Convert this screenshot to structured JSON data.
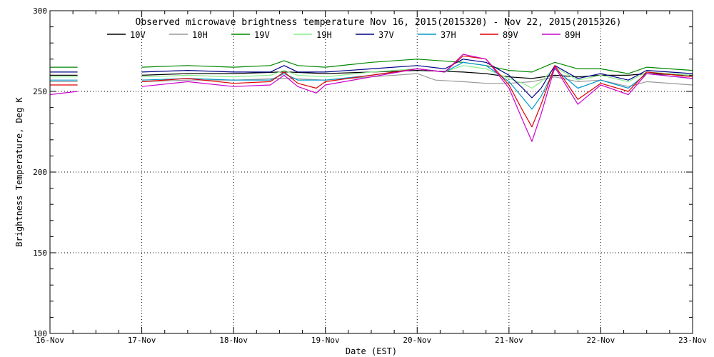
{
  "chart_data": {
    "type": "line",
    "title": "Observed microwave brightness temperature Nov 16, 2015(2015320) - Nov 22, 2015(2015326)",
    "xlabel": "Date (EST)",
    "ylabel": "Brightness Temperature, Deg K",
    "ylim": [
      100,
      300
    ],
    "xlim": [
      0,
      7
    ],
    "yticks": [
      100,
      150,
      200,
      250,
      300
    ],
    "xtick_labels": [
      "16-Nov",
      "17-Nov",
      "18-Nov",
      "19-Nov",
      "20-Nov",
      "21-Nov",
      "22-Nov",
      "23-Nov"
    ],
    "grid": "dotted",
    "legend_position": "top",
    "series": [
      {
        "name": "10V",
        "color": "#000000",
        "x": [
          0.0,
          0.3,
          0.9,
          1.0,
          1.5,
          2.0,
          2.5,
          2.6,
          3.0,
          3.5,
          4.0,
          4.5,
          4.75,
          5.0,
          5.25,
          5.5,
          5.75,
          6.0,
          6.3,
          6.5,
          7.0
        ],
        "values": [
          260,
          260,
          null,
          260,
          261,
          261,
          262,
          262,
          261,
          262,
          263,
          262,
          261,
          259,
          258,
          260,
          259,
          260,
          260,
          261,
          260
        ]
      },
      {
        "name": "10H",
        "color": "#999999",
        "x": [
          0.0,
          0.3,
          0.9,
          1.0,
          1.5,
          2.0,
          2.5,
          2.6,
          3.0,
          3.5,
          4.0,
          4.2,
          4.5,
          4.75,
          5.0,
          5.25,
          5.5,
          5.75,
          6.0,
          6.3,
          6.5,
          7.0
        ],
        "values": [
          256,
          256,
          null,
          256,
          257,
          257,
          258,
          258,
          257,
          259,
          261,
          257,
          256,
          255,
          255,
          256,
          259,
          256,
          257,
          253,
          256,
          254
        ]
      },
      {
        "name": "19V",
        "color": "#008800",
        "x": [
          0.0,
          0.3,
          0.9,
          1.0,
          1.5,
          2.0,
          2.4,
          2.55,
          2.7,
          3.0,
          3.5,
          4.0,
          4.5,
          4.75,
          5.0,
          5.25,
          5.5,
          5.75,
          6.0,
          6.3,
          6.5,
          7.0
        ],
        "values": [
          265,
          265,
          null,
          265,
          266,
          265,
          266,
          269,
          266,
          265,
          268,
          270,
          268,
          266,
          263,
          262,
          268,
          264,
          264,
          261,
          265,
          263
        ]
      },
      {
        "name": "19H",
        "color": "#88ee88",
        "x": [
          0.0,
          0.3,
          0.9,
          1.0,
          1.5,
          2.0,
          2.4,
          2.55,
          2.7,
          3.0,
          3.5,
          4.0,
          4.3,
          4.5,
          4.75,
          5.0,
          5.15,
          5.25,
          5.35,
          5.5,
          5.75,
          6.0,
          6.3,
          6.5,
          7.0
        ],
        "values": [
          259,
          259,
          null,
          259,
          260,
          259,
          260,
          263,
          260,
          259,
          262,
          264,
          262,
          266,
          264,
          258,
          255,
          252,
          256,
          265,
          257,
          260,
          256,
          262,
          260
        ]
      },
      {
        "name": "37V",
        "color": "#000088",
        "x": [
          0.0,
          0.3,
          0.9,
          1.0,
          1.5,
          2.0,
          2.4,
          2.55,
          2.7,
          3.0,
          3.5,
          4.0,
          4.3,
          4.5,
          4.75,
          5.0,
          5.15,
          5.25,
          5.35,
          5.5,
          5.75,
          6.0,
          6.3,
          6.5,
          7.0
        ],
        "values": [
          262,
          262,
          null,
          262,
          263,
          262,
          262,
          266,
          262,
          262,
          264,
          266,
          264,
          270,
          268,
          260,
          252,
          246,
          252,
          266,
          258,
          261,
          257,
          263,
          261
        ]
      },
      {
        "name": "37H",
        "color": "#0099cc",
        "x": [
          0.0,
          0.3,
          0.9,
          1.0,
          1.5,
          2.0,
          2.4,
          2.55,
          2.7,
          3.0,
          3.5,
          4.0,
          4.3,
          4.5,
          4.75,
          5.0,
          5.15,
          5.25,
          5.35,
          5.5,
          5.75,
          6.0,
          6.3,
          6.5,
          7.0
        ],
        "values": [
          257,
          257,
          null,
          257,
          258,
          257,
          257,
          261,
          257,
          257,
          260,
          264,
          262,
          268,
          266,
          256,
          246,
          239,
          247,
          264,
          252,
          257,
          252,
          261,
          258
        ]
      },
      {
        "name": "89V",
        "color": "#dd0000",
        "x": [
          0.0,
          0.3,
          0.9,
          1.0,
          1.5,
          2.0,
          2.4,
          2.55,
          2.7,
          2.9,
          3.0,
          3.5,
          4.0,
          4.3,
          4.5,
          4.75,
          5.0,
          5.15,
          5.25,
          5.35,
          5.5,
          5.75,
          6.0,
          6.3,
          6.5,
          7.0
        ],
        "values": [
          254,
          254,
          null,
          256,
          258,
          255,
          256,
          262,
          255,
          252,
          256,
          260,
          264,
          262,
          272,
          270,
          254,
          238,
          228,
          242,
          266,
          245,
          255,
          250,
          262,
          259
        ]
      },
      {
        "name": "89H",
        "color": "#cc00cc",
        "x": [
          0.0,
          0.3,
          0.9,
          1.0,
          1.5,
          2.0,
          2.4,
          2.55,
          2.7,
          2.9,
          3.0,
          3.5,
          4.0,
          4.3,
          4.5,
          4.75,
          5.0,
          5.15,
          5.25,
          5.35,
          5.5,
          5.75,
          6.0,
          6.3,
          6.5,
          7.0
        ],
        "values": [
          248,
          250,
          null,
          253,
          256,
          253,
          254,
          260,
          253,
          249,
          254,
          259,
          264,
          262,
          273,
          270,
          252,
          232,
          219,
          236,
          265,
          242,
          254,
          248,
          261,
          258
        ]
      }
    ]
  }
}
